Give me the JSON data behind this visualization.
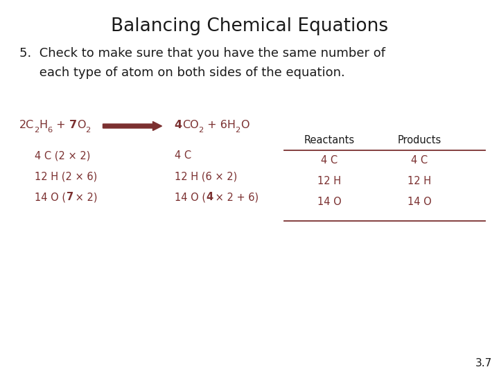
{
  "title": "Balancing Chemical Equations",
  "background_color": "#ffffff",
  "title_fontsize": 19,
  "title_color": "#1a1a1a",
  "red": "#7B3030",
  "black": "#1a1a1a",
  "body_line1": "5.  Check to make sure that you have the same number of",
  "body_line2": "     each type of atom on both sides of the equation.",
  "body_fontsize": 13,
  "slide_number": "3.7",
  "reactants_label": "Reactants",
  "products_label": "Products",
  "table_rows": [
    [
      "4 C",
      "4 C"
    ],
    [
      "12 H",
      "12 H"
    ],
    [
      "14 O",
      "14 O"
    ]
  ]
}
